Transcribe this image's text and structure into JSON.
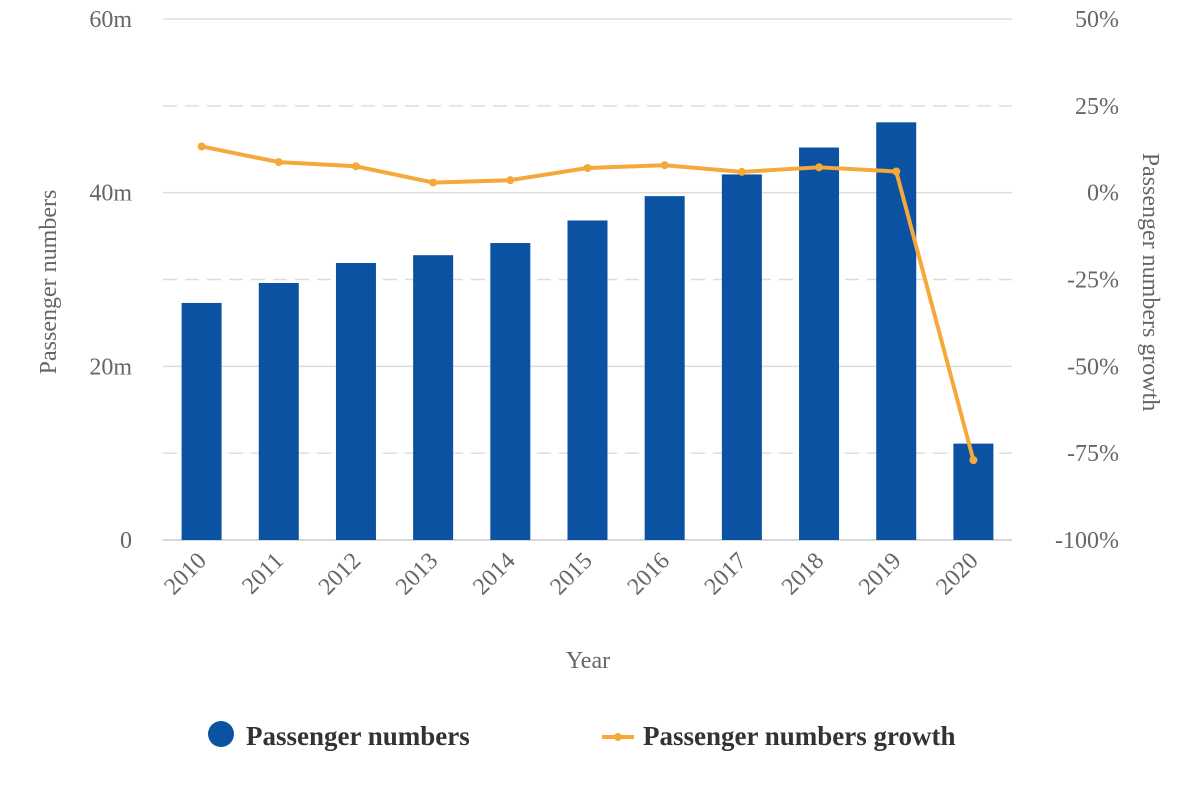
{
  "chart_data": {
    "type": "bar+line",
    "categories": [
      "2010",
      "2011",
      "2012",
      "2013",
      "2014",
      "2015",
      "2016",
      "2017",
      "2018",
      "2019",
      "2020"
    ],
    "series": [
      {
        "name": "Passenger numbers",
        "type": "bar",
        "axis": "left",
        "values": [
          27.3,
          29.6,
          31.9,
          32.8,
          34.2,
          36.8,
          39.6,
          42.1,
          45.2,
          48.1,
          11.1
        ]
      },
      {
        "name": "Passenger numbers growth",
        "type": "line",
        "axis": "right",
        "values": [
          13.3,
          8.8,
          7.6,
          2.9,
          3.6,
          7.1,
          7.9,
          6.0,
          7.3,
          6.1,
          -77.0
        ]
      }
    ],
    "xlabel": "Year",
    "ylabel_left": "Passenger numbers",
    "ylabel_right": "Passenger numbers growth",
    "ylim_left": [
      0,
      60
    ],
    "ylim_right": [
      -100,
      50
    ],
    "yticks_left": [
      0,
      20,
      40,
      60
    ],
    "yticks_left_labels": [
      "0",
      "20m",
      "40m",
      "60m"
    ],
    "yticks_right": [
      -100,
      -75,
      -50,
      -25,
      0,
      25,
      50
    ],
    "yticks_right_labels": [
      "-100%",
      "-75%",
      "-50%",
      "-25%",
      "0%",
      "25%",
      "50%"
    ],
    "grid": true,
    "legend_position": "bottom",
    "colors": {
      "bar": "#0b52a2",
      "line": "#f5a93a",
      "grid": "#dddddd",
      "text": "#666666"
    }
  }
}
